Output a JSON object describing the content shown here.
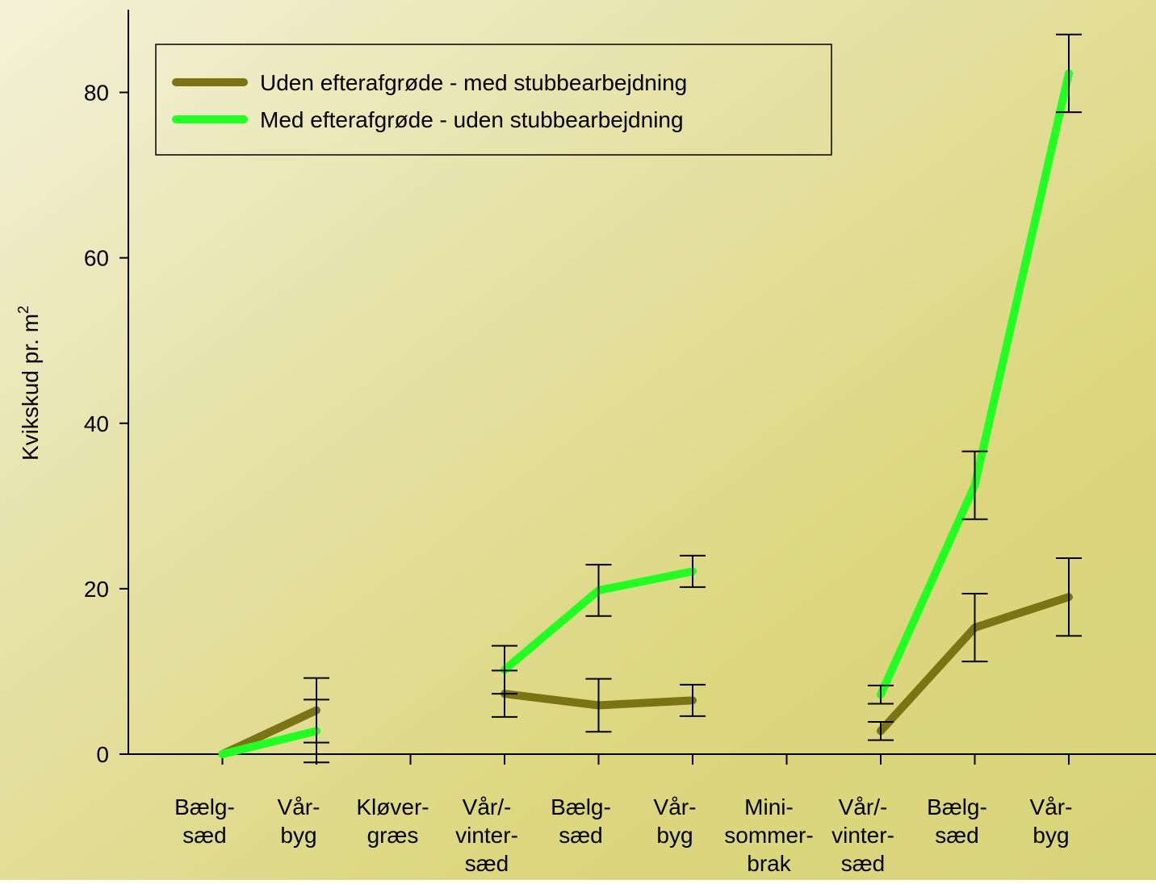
{
  "chart_data": {
    "type": "line",
    "ylabel": "Kvikskud pr. m",
    "ylabel_superscript": "2",
    "categories": [
      [
        "Bælg-",
        "sæd"
      ],
      [
        "Vår-",
        "byg"
      ],
      [
        "Kløver-",
        "græs"
      ],
      [
        "Vår/-",
        "vinter-",
        "sæd"
      ],
      [
        "Bælg-",
        "sæd"
      ],
      [
        "Vår-",
        "byg"
      ],
      [
        "Mini-",
        "sommer-",
        "brak"
      ],
      [
        "Vår/-",
        "vinter-",
        "sæd"
      ],
      [
        "Bælg-",
        "sæd"
      ],
      [
        "Vår-",
        "byg"
      ]
    ],
    "series": [
      {
        "name": "Uden efterafgrøde - med stubbearbejdning",
        "color": "#7a7415",
        "values": [
          0,
          5.3,
          null,
          7.3,
          5.9,
          6.5,
          null,
          2.8,
          15.3,
          19.0
        ],
        "errors": [
          null,
          3.9,
          null,
          2.8,
          3.2,
          1.9,
          null,
          1.1,
          4.1,
          4.7
        ]
      },
      {
        "name": "Med efterafgrøde - uden stubbearbejdning",
        "color": "#22ff22",
        "values": [
          0,
          2.8,
          null,
          10.2,
          19.8,
          22.1,
          null,
          7.2,
          32.5,
          82.3
        ],
        "errors": [
          null,
          3.8,
          null,
          2.9,
          3.1,
          1.9,
          null,
          1.1,
          4.1,
          4.7
        ]
      }
    ],
    "ylim": [
      0,
      90
    ],
    "yticks": [
      0,
      20,
      40,
      60,
      80
    ],
    "legend": "top-left"
  }
}
